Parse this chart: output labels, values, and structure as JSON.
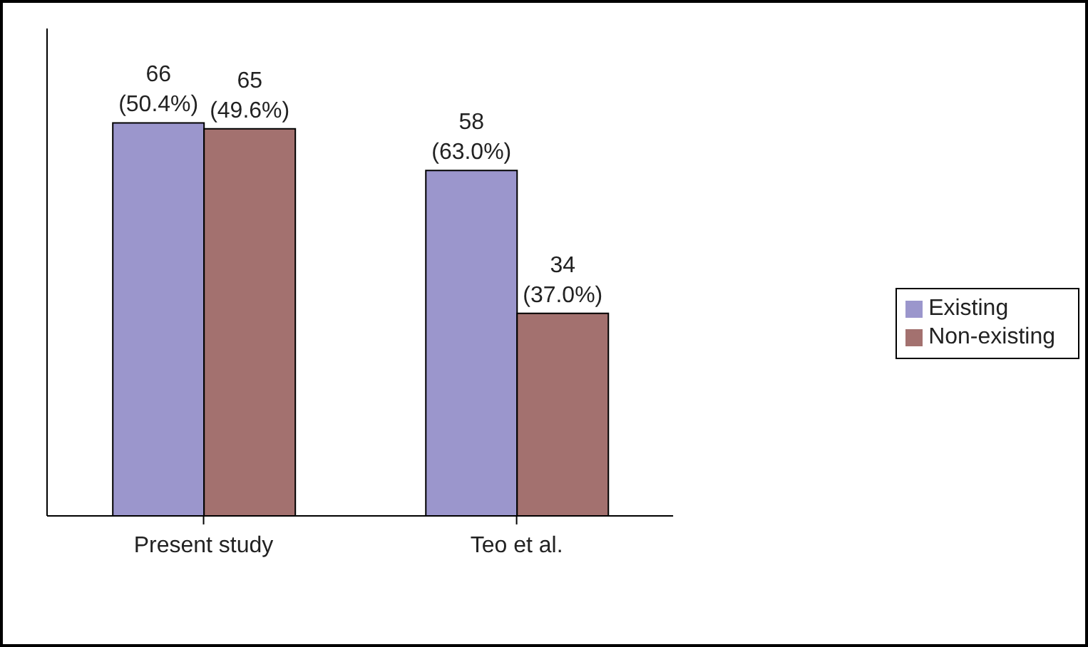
{
  "chart_data": {
    "type": "bar",
    "categories": [
      "Present study",
      "Teo et al."
    ],
    "series": [
      {
        "name": "Existing",
        "color": "#9b96cc",
        "values": [
          66,
          58
        ],
        "value_labels": [
          "66 (50.4%)",
          "58 (63.0%)"
        ]
      },
      {
        "name": "Non-existing",
        "color": "#a3716f",
        "values": [
          65,
          34
        ],
        "value_labels": [
          "65 (49.6%)",
          "34 (37.0%)"
        ]
      }
    ],
    "legend": "right",
    "grid": false
  }
}
